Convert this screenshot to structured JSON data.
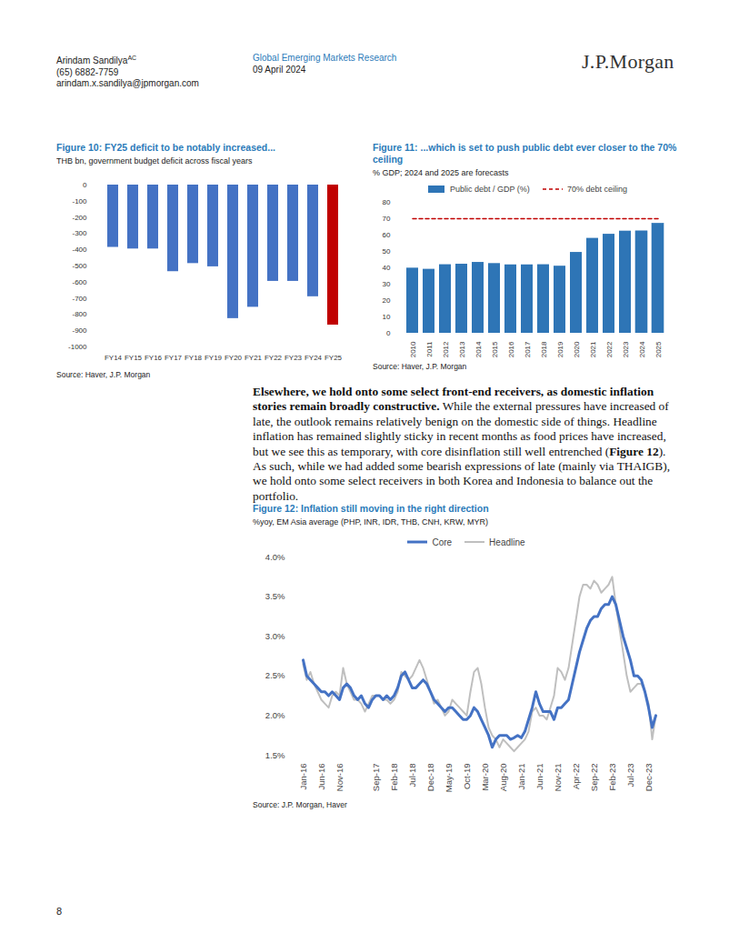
{
  "header": {
    "author": "Arindam Sandilya",
    "author_mark": "AC",
    "phone": "(65) 6882-7759",
    "email": "arindam.x.sandilya@jpmorgan.com",
    "series": "Global Emerging Markets Research",
    "date": "09 April 2024",
    "logo": "J.P.Morgan"
  },
  "chart_data": [
    {
      "type": "bar",
      "title": "Figure 10: FY25 deficit to be notably increased...",
      "subtitle": "THB bn, government budget deficit across fiscal years",
      "source": "Source: Haver, J.P. Morgan",
      "categories": [
        "FY14",
        "FY15",
        "FY16",
        "FY17",
        "FY18",
        "FY19",
        "FY20",
        "FY21",
        "FY22",
        "FY23",
        "FY24",
        "FY25"
      ],
      "values": [
        -385,
        -395,
        -395,
        -535,
        -485,
        -505,
        -825,
        -755,
        -595,
        -595,
        -690,
        -865
      ],
      "colors": [
        "#4472c4",
        "#4472c4",
        "#4472c4",
        "#4472c4",
        "#4472c4",
        "#4472c4",
        "#4472c4",
        "#4472c4",
        "#4472c4",
        "#4472c4",
        "#4472c4",
        "#c00000"
      ],
      "ylim": [
        -1000,
        0
      ],
      "yticks": [
        0,
        -100,
        -200,
        -300,
        -400,
        -500,
        -600,
        -700,
        -800,
        -900,
        -1000
      ],
      "grid": false
    },
    {
      "type": "bar",
      "title": "Figure 11: ...which is set to push public debt ever closer to the 70% ceiling",
      "subtitle": "% GDP; 2024 and 2025 are forecasts",
      "source": "Source: Haver, J.P. Morgan",
      "categories": [
        "2010",
        "2011",
        "2012",
        "2013",
        "2014",
        "2015",
        "2016",
        "2017",
        "2018",
        "2019",
        "2020",
        "2021",
        "2022",
        "2023",
        "2024",
        "2025"
      ],
      "series": [
        {
          "name": "Public debt / GDP (%)",
          "type": "bar",
          "color": "#2e75b6",
          "values": [
            39.8,
            39.1,
            41.9,
            42.2,
            43.3,
            42.6,
            41.8,
            41.8,
            41.9,
            41.0,
            49.4,
            58.0,
            60.5,
            62.4,
            62.3,
            67.0
          ],
          "forecast": [
            false,
            false,
            false,
            false,
            false,
            false,
            false,
            false,
            false,
            false,
            false,
            false,
            false,
            false,
            true,
            true
          ]
        },
        {
          "name": "70% debt ceiling",
          "type": "line",
          "color": "#c00000",
          "line_style": "dashed",
          "values": [
            70,
            70,
            70,
            70,
            70,
            70,
            70,
            70,
            70,
            70,
            70,
            70,
            70,
            70,
            70,
            70
          ]
        }
      ],
      "ylim": [
        0,
        80
      ],
      "yticks": [
        0,
        10,
        20,
        30,
        40,
        50,
        60,
        70,
        80
      ],
      "grid": false,
      "legend": "top"
    },
    {
      "type": "line",
      "title": "Figure 12: Inflation still moving in the right direction",
      "subtitle": "%yoy, EM Asia average (PHP, INR, IDR, THB, CNH, KRW, MYR)",
      "source": "Source: J.P. Morgan, Haver",
      "categories": [
        "Jan-16",
        null,
        null,
        null,
        null,
        "Jun-16",
        null,
        null,
        null,
        null,
        "Nov-16",
        null,
        null,
        null,
        null,
        null,
        null,
        null,
        null,
        null,
        "Sep-17",
        null,
        null,
        null,
        null,
        "Feb-18",
        null,
        null,
        null,
        null,
        "Jul-18",
        null,
        null,
        null,
        null,
        "Dec-18",
        null,
        null,
        null,
        null,
        "May-19",
        null,
        null,
        null,
        null,
        "Oct-19",
        null,
        null,
        null,
        null,
        "Mar-20",
        null,
        null,
        null,
        null,
        "Aug-20",
        null,
        null,
        null,
        null,
        "Jan-21",
        null,
        null,
        null,
        null,
        "Jun-21",
        null,
        null,
        null,
        null,
        "Nov-21",
        null,
        null,
        null,
        null,
        "Apr-22",
        null,
        null,
        null,
        null,
        "Sep-22",
        null,
        null,
        null,
        null,
        "Feb-23",
        null,
        null,
        null,
        null,
        "Jul-23",
        null,
        null,
        null,
        null,
        "Dec-23",
        null,
        null
      ],
      "series": [
        {
          "name": "Core",
          "color": "#4472c4",
          "values": [
            2.7,
            2.5,
            2.45,
            2.4,
            2.35,
            2.3,
            2.3,
            2.25,
            2.3,
            2.25,
            2.2,
            2.35,
            2.4,
            2.35,
            2.25,
            2.2,
            2.25,
            2.15,
            2.1,
            2.2,
            2.25,
            2.25,
            2.2,
            2.25,
            2.2,
            2.25,
            2.35,
            2.5,
            2.55,
            2.45,
            2.35,
            2.35,
            2.4,
            2.45,
            2.4,
            2.3,
            2.2,
            2.15,
            2.1,
            2.05,
            2.1,
            2.1,
            2.05,
            2.0,
            1.95,
            1.95,
            2.0,
            2.1,
            2.05,
            1.95,
            1.85,
            1.75,
            1.6,
            1.7,
            1.75,
            1.75,
            1.75,
            1.7,
            1.72,
            1.75,
            1.72,
            1.8,
            1.95,
            2.1,
            2.3,
            2.15,
            2.05,
            2.05,
            2.05,
            1.95,
            2.1,
            2.1,
            2.15,
            2.2,
            2.4,
            2.6,
            2.8,
            2.95,
            3.1,
            3.2,
            3.25,
            3.25,
            3.35,
            3.4,
            3.4,
            3.5,
            3.4,
            3.2,
            3.0,
            2.85,
            2.7,
            2.5,
            2.5,
            2.45,
            2.3,
            2.1,
            1.85,
            2.0
          ]
        },
        {
          "name": "Headline",
          "color": "#bfbfbf",
          "values": [
            2.65,
            2.45,
            2.55,
            2.4,
            2.3,
            2.2,
            2.15,
            2.1,
            2.25,
            2.3,
            2.25,
            2.6,
            2.4,
            2.3,
            2.2,
            2.2,
            2.15,
            2.05,
            2.15,
            2.25,
            2.25,
            2.25,
            2.2,
            2.2,
            2.15,
            2.2,
            2.3,
            2.55,
            2.5,
            2.45,
            2.5,
            2.6,
            2.7,
            2.6,
            2.45,
            2.3,
            2.15,
            2.2,
            2.1,
            2.0,
            2.05,
            2.2,
            2.15,
            2.1,
            2.05,
            2.0,
            2.3,
            2.55,
            2.6,
            2.4,
            2.1,
            1.85,
            1.75,
            1.7,
            1.6,
            1.7,
            1.65,
            1.6,
            1.55,
            1.6,
            1.65,
            1.7,
            1.8,
            2.05,
            2.1,
            2.0,
            2.0,
            1.95,
            2.1,
            2.25,
            2.6,
            2.55,
            2.45,
            2.6,
            2.9,
            3.2,
            3.5,
            3.65,
            3.65,
            3.6,
            3.7,
            3.65,
            3.55,
            3.6,
            3.65,
            3.75,
            3.4,
            3.1,
            2.8,
            2.5,
            2.3,
            2.35,
            2.4,
            2.4,
            2.3,
            2.15,
            1.7,
            2.0
          ]
        }
      ],
      "ylim": [
        1.5,
        4.0
      ],
      "yticks": [
        {
          "value": 1.5,
          "label": "1.5%"
        },
        {
          "value": 2.0,
          "label": "2.0%"
        },
        {
          "value": 2.5,
          "label": "2.5%"
        },
        {
          "value": 3.0,
          "label": "3.0%"
        },
        {
          "value": 3.5,
          "label": "3.5%"
        },
        {
          "value": 4.0,
          "label": "4.0%"
        }
      ],
      "grid": false,
      "legend": "top"
    }
  ],
  "body": [
    {
      "text": "Elsewhere, we hold onto some select front-end receivers, as domestic inflation stories remain broadly constructive.",
      "bold": true
    },
    {
      "text": " While the external pressures have increased of late, the outlook remains relatively benign on the domestic side of things. Headline inflation has remained slightly sticky in recent months as food prices have increased, but we see this as temporary, with core disinflation still well entrenched (",
      "bold": false
    },
    {
      "text": "Figure 12",
      "bold": true
    },
    {
      "text": "). As such, while we had added some bearish expressions of late (mainly via THAIGB), we hold onto some select receivers in both Korea and Indonesia to balance out the portfolio.",
      "bold": false
    }
  ],
  "page_number": "8"
}
